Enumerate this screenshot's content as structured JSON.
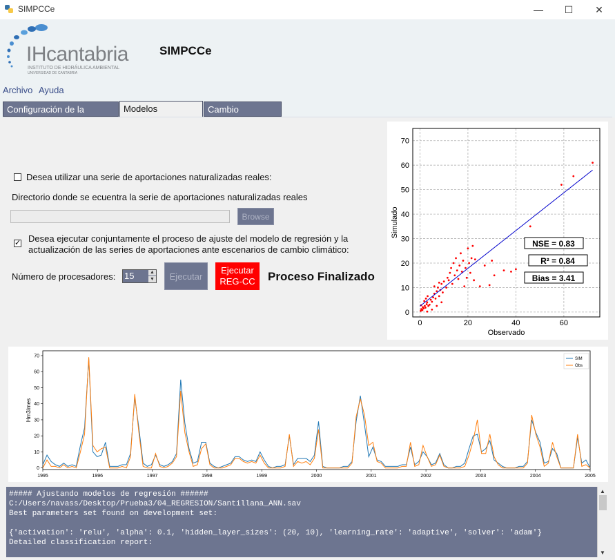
{
  "window": {
    "title": "SIMPCCe",
    "minimize": "—",
    "maximize": "☐",
    "close": "✕"
  },
  "header": {
    "logo_text": "IHcantabria",
    "logo_sub1": "INSTITUTO DE HIDRÁULICA AMBIENTAL",
    "logo_sub2": "UNIVERSIDAD DE CANTABRIA",
    "app_name": "SIMPCCe"
  },
  "menu": {
    "items": [
      "Archivo",
      "Ayuda"
    ]
  },
  "tabs": [
    {
      "label": "Configuración de la cuenca"
    },
    {
      "label": "Modelos Regresion"
    },
    {
      "label": "Cambio Climático"
    }
  ],
  "form": {
    "use_real_label": "Desea utilizar una serie de aportaciones naturalizadas reales:",
    "use_real_checked": "",
    "dir_label": "Directorio donde se ecuentra la serie de aportaciones naturalizadas reales",
    "dir_value": "",
    "browse_label": "Browse",
    "joint_label_1": "Desea ejecutar conjuntamente el proceso de ajuste del modelo de regresión y la",
    "joint_label_2": "actualización de las series de aportaciones ante escenarios de cambio climático:",
    "joint_checked": "✓",
    "procs_label": "Número de procesadores:",
    "procs_value": "15",
    "run_label": "Ejecutar",
    "run_cc_label_1": "Ejecutar",
    "run_cc_label_2": "REG-CC",
    "status": "Proceso Finalizado"
  },
  "scatter": {
    "xlabel": "Observado",
    "ylabel": "Simulado",
    "xticks": [
      "0",
      "20",
      "40",
      "60"
    ],
    "yticks": [
      "0",
      "10",
      "20",
      "30",
      "40",
      "50",
      "60",
      "70"
    ],
    "nse": "NSE = 0.83",
    "r2": "R² = 0.84",
    "bias": "Bias = 3.41"
  },
  "timeseries": {
    "ylabel": "Hm3/mes",
    "years": [
      "1995",
      "1996",
      "1997",
      "1998",
      "1999",
      "2000",
      "2001",
      "2002",
      "2003",
      "2004",
      "2005"
    ],
    "yticks": [
      "0",
      "10",
      "20",
      "30",
      "40",
      "50",
      "60",
      "70"
    ],
    "legend": [
      "SIM",
      "Obs"
    ]
  },
  "console": {
    "lines": [
      "##### Ajustando modelos de regresión ######",
      "C:/Users/navass/Desktop/Prueba3/04_REGRESION/Santillana_ANN.sav",
      "Best parameters set found on development set:",
      "",
      "{'activation': 'relu', 'alpha': 0.1, 'hidden_layer_sizes': (20, 10), 'learning_rate': 'adaptive', 'solver': 'adam'}",
      "Detailed classification report:"
    ]
  },
  "colors": {
    "sim": "#1f77b4",
    "obs": "#ff7f0e",
    "points": "#ff0000",
    "fit": "#0000cc",
    "accent": "#6d7590"
  },
  "chart_data": [
    {
      "type": "scatter",
      "title": "",
      "xlabel": "Observado",
      "ylabel": "Simulado",
      "xlim": [
        -3,
        75
      ],
      "ylim": [
        -2,
        75
      ],
      "grid": true,
      "fit_line": {
        "x": [
          0,
          72
        ],
        "y": [
          2.4,
          58
        ]
      },
      "annotations": [
        "NSE = 0.83",
        "R² = 0.84",
        "Bias = 3.41"
      ],
      "points": [
        [
          0.3,
          0.5
        ],
        [
          0.6,
          1.2
        ],
        [
          1,
          0.8
        ],
        [
          1.2,
          2
        ],
        [
          1.5,
          1.5
        ],
        [
          2,
          2.5
        ],
        [
          2.3,
          1.8
        ],
        [
          2.8,
          3.2
        ],
        [
          3,
          4
        ],
        [
          3.5,
          2.5
        ],
        [
          0.5,
          2.8
        ],
        [
          1.8,
          4.5
        ],
        [
          2.5,
          5.5
        ],
        [
          3.2,
          6.5
        ],
        [
          4,
          3
        ],
        [
          4.5,
          5
        ],
        [
          5,
          4.2
        ],
        [
          5.5,
          6
        ],
        [
          6,
          7.5
        ],
        [
          6.5,
          5.5
        ],
        [
          7,
          8.5
        ],
        [
          7.5,
          10
        ],
        [
          8,
          6.5
        ],
        [
          8.5,
          9
        ],
        [
          9,
          11.5
        ],
        [
          9.5,
          8
        ],
        [
          10,
          12.5
        ],
        [
          11,
          10
        ],
        [
          11.5,
          14
        ],
        [
          12,
          13
        ],
        [
          12.5,
          16
        ],
        [
          13,
          18
        ],
        [
          13.5,
          11.5
        ],
        [
          14,
          20
        ],
        [
          14.5,
          15
        ],
        [
          15,
          22
        ],
        [
          15.5,
          17
        ],
        [
          16,
          13.5
        ],
        [
          16.5,
          19
        ],
        [
          17,
          24
        ],
        [
          17.5,
          16.5
        ],
        [
          18,
          21
        ],
        [
          18.5,
          10.5
        ],
        [
          19,
          18
        ],
        [
          19.5,
          14
        ],
        [
          20,
          26
        ],
        [
          20.5,
          20
        ],
        [
          21,
          16
        ],
        [
          21.5,
          22
        ],
        [
          22,
          27
        ],
        [
          22.5,
          13
        ],
        [
          23,
          21.5
        ],
        [
          25,
          10.5
        ],
        [
          27,
          19
        ],
        [
          29,
          11
        ],
        [
          30,
          21
        ],
        [
          31,
          15
        ],
        [
          35,
          17
        ],
        [
          38,
          16.5
        ],
        [
          40,
          17.5
        ],
        [
          46,
          35
        ],
        [
          59,
          52
        ],
        [
          64,
          55.5
        ],
        [
          72,
          61
        ],
        [
          3,
          0.2
        ],
        [
          5,
          1
        ],
        [
          7,
          2.5
        ],
        [
          9,
          4
        ],
        [
          6,
          10.5
        ],
        [
          8,
          12
        ]
      ]
    },
    {
      "type": "line",
      "title": "",
      "xlabel": "",
      "ylabel": "Hm3/mes",
      "x_range": [
        "1995-01",
        "2005-01"
      ],
      "ylim": [
        -1,
        73
      ],
      "legend_position": "top-right",
      "series": [
        {
          "name": "SIM",
          "values": [
            2,
            8,
            4,
            2,
            1,
            3,
            1,
            2,
            1,
            14,
            25,
            68,
            10,
            7,
            8,
            16,
            1,
            1,
            1,
            2,
            2,
            9,
            44,
            25,
            3,
            1,
            2,
            8,
            2,
            1,
            2,
            4,
            9,
            55,
            28,
            12,
            3,
            4,
            16,
            16,
            3,
            1,
            0,
            1,
            2,
            3,
            7,
            7,
            5,
            4,
            5,
            4,
            10,
            5,
            1,
            0,
            1,
            1,
            2,
            20,
            2,
            6,
            6,
            6,
            4,
            8,
            29,
            1,
            0,
            0,
            0,
            0,
            1,
            1,
            4,
            29,
            45,
            27,
            7,
            13,
            5,
            4,
            1,
            1,
            1,
            1,
            2,
            2,
            13,
            2,
            4,
            10,
            7,
            2,
            3,
            9,
            2,
            0,
            0,
            1,
            1,
            3,
            12,
            20,
            21,
            10,
            12,
            17,
            5,
            3,
            1,
            0,
            0,
            0,
            1,
            1,
            4,
            30,
            22,
            16,
            3,
            4,
            12,
            9,
            0,
            0,
            0,
            0,
            19,
            3,
            5,
            0
          ]
        },
        {
          "name": "Obs",
          "values": [
            0,
            5,
            1,
            1,
            0,
            2,
            0,
            1,
            0,
            10,
            21,
            69,
            14,
            10,
            12,
            13,
            0,
            0,
            0,
            1,
            0,
            7,
            46,
            22,
            1,
            0,
            0,
            9,
            1,
            0,
            1,
            3,
            7,
            48,
            22,
            10,
            1,
            2,
            12,
            15,
            2,
            0,
            0,
            0,
            1,
            2,
            6,
            6,
            4,
            3,
            4,
            3,
            8,
            3,
            0,
            0,
            0,
            0,
            1,
            21,
            1,
            4,
            3,
            4,
            2,
            6,
            24,
            0,
            0,
            0,
            0,
            0,
            0,
            0,
            3,
            32,
            43,
            33,
            14,
            16,
            4,
            3,
            0,
            0,
            0,
            0,
            1,
            1,
            16,
            1,
            2,
            14,
            7,
            1,
            2,
            8,
            1,
            0,
            0,
            0,
            0,
            1,
            8,
            17,
            30,
            9,
            9,
            21,
            7,
            2,
            0,
            0,
            0,
            0,
            0,
            0,
            3,
            33,
            21,
            13,
            1,
            3,
            16,
            7,
            0,
            0,
            0,
            0,
            21,
            1,
            2,
            0
          ]
        }
      ]
    }
  ]
}
